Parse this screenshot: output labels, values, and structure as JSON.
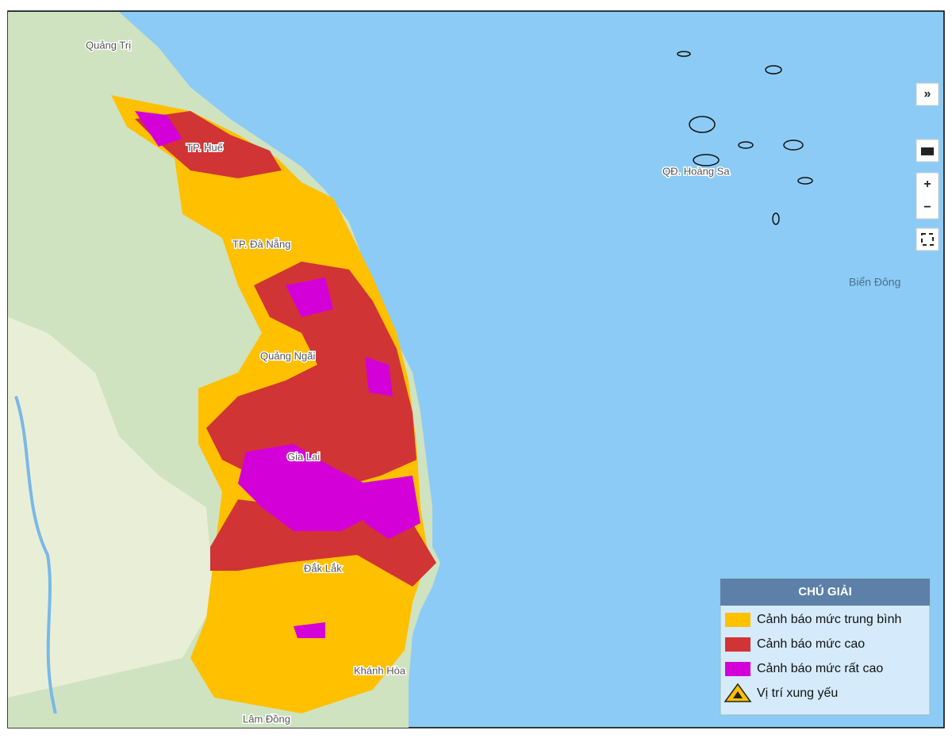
{
  "map": {
    "places": [
      "Quảng Trị",
      "TP. Huế",
      "TP. Đà Nẵng",
      "Quảng Ngãi",
      "Gia Lai",
      "Đắk Lắk",
      "Khánh Hòa",
      "Lâm Đồng",
      "QĐ. Hoàng Sa",
      "Biển Đông"
    ],
    "controls": [
      "»",
      "+",
      "−"
    ]
  },
  "legend": {
    "title": "CHÚ GIẢI",
    "items": [
      {
        "label": "Cảnh báo mức trung bình",
        "color": "#ffc000"
      },
      {
        "label": "Cảnh báo mức cao",
        "color": "#d13434"
      },
      {
        "label": "Cảnh báo mức rất cao",
        "color": "#d400d8"
      },
      {
        "label": "Vị trí xung yếu"
      }
    ]
  }
}
